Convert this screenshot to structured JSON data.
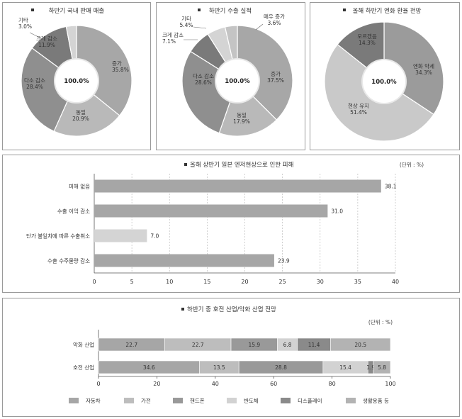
{
  "chart_data": [
    {
      "type": "pie",
      "title": "하반기 국내 판매 매출",
      "center_label": "100.0%",
      "slices": [
        {
          "label": "증가",
          "value": 35.8,
          "display": "35.8%",
          "color": "#a7a7a7"
        },
        {
          "label": "동일",
          "value": 20.9,
          "display": "20.9%",
          "color": "#b9b9b9"
        },
        {
          "label": "다소 감소",
          "value": 28.4,
          "display": "28.4%",
          "color": "#8f8f8f"
        },
        {
          "label": "크게 감소",
          "value": 11.9,
          "display": "11.9%",
          "color": "#7a7a7a"
        },
        {
          "label": "기타",
          "value": 3.0,
          "display": "3.0%",
          "color": "#d4d4d4"
        }
      ]
    },
    {
      "type": "pie",
      "title": "하반기 수출 실적",
      "center_label": "100.0%",
      "slices": [
        {
          "label": "증가",
          "value": 37.5,
          "display": "37.5%",
          "color": "#a7a7a7"
        },
        {
          "label": "동일",
          "value": 17.9,
          "display": "17.9%",
          "color": "#b9b9b9"
        },
        {
          "label": "다소 감소",
          "value": 28.6,
          "display": "28.6%",
          "color": "#8f8f8f"
        },
        {
          "label": "크게 감소",
          "value": 7.1,
          "display": "7.1%",
          "color": "#7a7a7a"
        },
        {
          "label": "기타",
          "value": 5.4,
          "display": "5.4%",
          "color": "#d4d4d4"
        },
        {
          "label": "매우 증가",
          "value": 3.6,
          "display": "3.6%",
          "color": "#c4c4c4"
        }
      ]
    },
    {
      "type": "pie",
      "title": "올해 하반기 엔화 환율 전망",
      "center_label": "100.0%",
      "slices": [
        {
          "label": "엔화 약세",
          "value": 34.3,
          "display": "34.3%",
          "color": "#9b9b9b"
        },
        {
          "label": "현상 유지",
          "value": 51.4,
          "display": "51.4%",
          "color": "#c9c9c9"
        },
        {
          "label": "모르겠음",
          "value": 14.3,
          "display": "14.3%",
          "color": "#7a7a7a"
        }
      ]
    },
    {
      "type": "bar",
      "orientation": "horizontal",
      "title": "올해 상반기 일본 엔저현상으로 인한 피해",
      "unit": "(단위 : %)",
      "categories": [
        "피해 없음",
        "수출 이익 감소",
        "단가 불일치에 따른 수출취소",
        "수출 수주물량 감소"
      ],
      "values": [
        38.1,
        31.0,
        7.0,
        23.9
      ],
      "value_labels": [
        "38.1",
        "31.0",
        "7.0",
        "23.9"
      ],
      "xlim": [
        0,
        40
      ],
      "xticks": [
        0,
        5,
        10,
        15,
        20,
        25,
        30,
        35,
        40
      ],
      "grid": true,
      "color": "#a6a6a6"
    },
    {
      "type": "bar",
      "orientation": "horizontal",
      "stacked": true,
      "title": "하반기 중 호전 산업/악화 산업 전망",
      "unit": "(단위 : %)",
      "categories": [
        "악화 산업",
        "호전 산업"
      ],
      "series": [
        {
          "name": "자동차",
          "values": [
            22.7,
            34.6
          ],
          "color": "#a6a6a6"
        },
        {
          "name": "가전",
          "values": [
            22.7,
            13.5
          ],
          "color": "#bdbdbd"
        },
        {
          "name": "핸드폰",
          "values": [
            15.9,
            28.8
          ],
          "color": "#999999"
        },
        {
          "name": "반도체",
          "values": [
            6.8,
            15.4
          ],
          "color": "#d2d2d2"
        },
        {
          "name": "디스플레이",
          "values": [
            11.4,
            1.9
          ],
          "color": "#8a8a8a"
        },
        {
          "name": "생활용품 등",
          "values": [
            20.5,
            5.8
          ],
          "color": "#b3b3b3"
        }
      ],
      "value_labels": [
        [
          "22.7",
          "22.7",
          "15.9",
          "6.8",
          "11.4",
          "20.5"
        ],
        [
          "34.6",
          "13.5",
          "28.8",
          "15.4",
          "1.9",
          "5.8"
        ]
      ],
      "xlim": [
        0,
        100
      ],
      "xticks": [
        0,
        20,
        40,
        60,
        80,
        100
      ],
      "legend": "bottom"
    }
  ]
}
